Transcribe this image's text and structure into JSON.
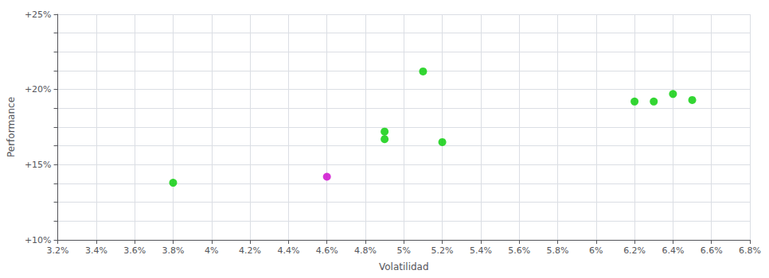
{
  "chart_data": {
    "type": "scatter",
    "xlabel": "Volatilidad",
    "ylabel": "Performance",
    "x": [
      0.038,
      0.046,
      0.049,
      0.049,
      0.051,
      0.052,
      0.062,
      0.063,
      0.064,
      0.065
    ],
    "values": [
      0.138,
      0.142,
      0.172,
      0.167,
      0.212,
      0.165,
      0.192,
      0.192,
      0.197,
      0.193
    ],
    "colors": [
      "#00cc00",
      "#cc00cc",
      "#00cc00",
      "#00cc00",
      "#00cc00",
      "#00cc00",
      "#00cc00",
      "#00cc00",
      "#00cc00",
      "#00cc00"
    ],
    "xlim": [
      0.032,
      0.068
    ],
    "ylim": [
      0.1,
      0.25
    ],
    "xticks": [
      {
        "value": 0.032,
        "label": "3.2%"
      },
      {
        "value": 0.034,
        "label": "3.4%"
      },
      {
        "value": 0.036,
        "label": "3.6%"
      },
      {
        "value": 0.038,
        "label": "3.8%"
      },
      {
        "value": 0.04,
        "label": "4%"
      },
      {
        "value": 0.042,
        "label": "4.2%"
      },
      {
        "value": 0.044,
        "label": "4.4%"
      },
      {
        "value": 0.046,
        "label": "4.6%"
      },
      {
        "value": 0.048,
        "label": "4.8%"
      },
      {
        "value": 0.05,
        "label": "5%"
      },
      {
        "value": 0.052,
        "label": "5.2%"
      },
      {
        "value": 0.054,
        "label": "5.4%"
      },
      {
        "value": 0.056,
        "label": "5.6%"
      },
      {
        "value": 0.058,
        "label": "5.8%"
      },
      {
        "value": 0.06,
        "label": "6%"
      },
      {
        "value": 0.062,
        "label": "6.2%"
      },
      {
        "value": 0.064,
        "label": "6.4%"
      },
      {
        "value": 0.066,
        "label": "6.6%"
      },
      {
        "value": 0.068,
        "label": "6.8%"
      }
    ],
    "yticks": [
      {
        "value": 0.1,
        "label": "+10%"
      },
      {
        "value": 0.1125,
        "label": ""
      },
      {
        "value": 0.125,
        "label": ""
      },
      {
        "value": 0.1375,
        "label": ""
      },
      {
        "value": 0.15,
        "label": "+15%"
      },
      {
        "value": 0.1625,
        "label": ""
      },
      {
        "value": 0.175,
        "label": ""
      },
      {
        "value": 0.1875,
        "label": ""
      },
      {
        "value": 0.2,
        "label": "+20%"
      },
      {
        "value": 0.2125,
        "label": ""
      },
      {
        "value": 0.225,
        "label": ""
      },
      {
        "value": 0.2375,
        "label": ""
      },
      {
        "value": 0.25,
        "label": "+25%"
      }
    ],
    "grid": true
  }
}
